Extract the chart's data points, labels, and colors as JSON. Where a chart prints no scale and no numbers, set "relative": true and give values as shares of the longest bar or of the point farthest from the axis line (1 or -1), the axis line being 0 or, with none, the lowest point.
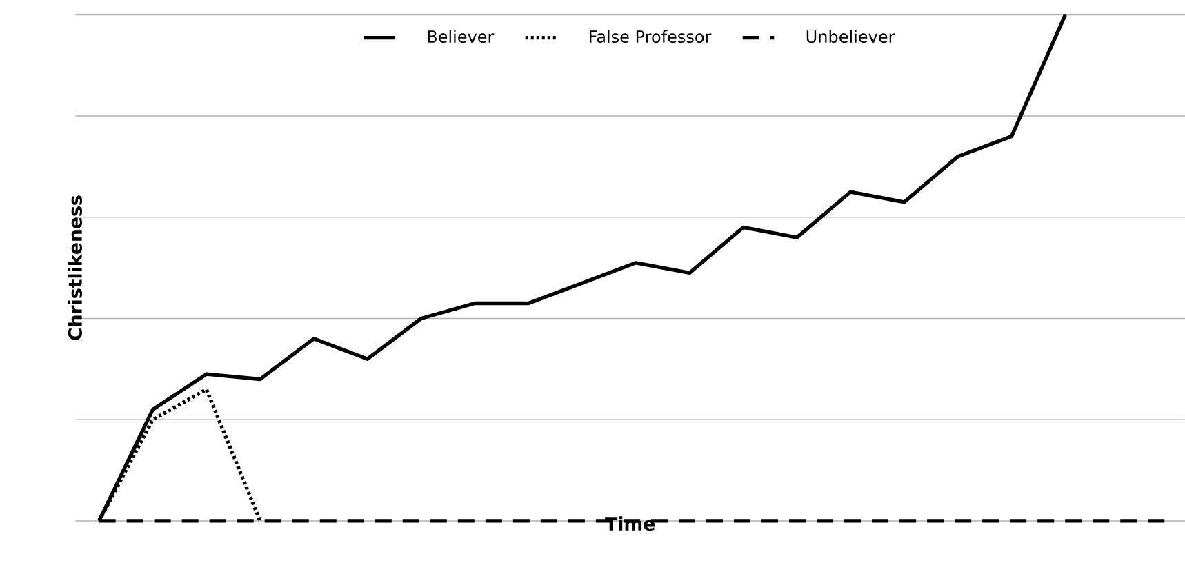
{
  "chart_data": {
    "type": "line",
    "relative": true,
    "xlabel": "Time",
    "ylabel": "Christlikeness",
    "categories": [
      null,
      null,
      null,
      null,
      null,
      null,
      null,
      null,
      null,
      null,
      null,
      null,
      null,
      null,
      null,
      null,
      null,
      null,
      null,
      null,
      null
    ],
    "series": [
      {
        "name": "Believer",
        "color": "#000000",
        "line_style": "solid",
        "values": [
          0,
          0.22,
          0.29,
          0.28,
          0.36,
          0.32,
          0.4,
          0.43,
          0.43,
          0.47,
          0.51,
          0.49,
          0.58,
          0.56,
          0.65,
          0.63,
          0.72,
          0.76,
          1.0,
          null,
          null
        ]
      },
      {
        "name": "False Professor",
        "color": "#000000",
        "line_style": "dotted",
        "values": [
          0,
          0.2,
          0.26,
          0,
          null,
          null,
          null,
          null,
          null,
          null,
          null,
          null,
          null,
          null,
          null,
          null,
          null,
          null,
          null,
          null,
          null
        ]
      },
      {
        "name": "Unbeliever",
        "color": "#000000",
        "line_style": "dashed",
        "values": [
          0,
          0,
          0,
          0,
          0,
          0,
          0,
          0,
          0,
          0,
          0,
          0,
          0,
          0,
          0,
          0,
          0,
          0,
          0,
          0,
          0
        ]
      }
    ],
    "grid": "y",
    "legend": "top",
    "marker": "none"
  }
}
